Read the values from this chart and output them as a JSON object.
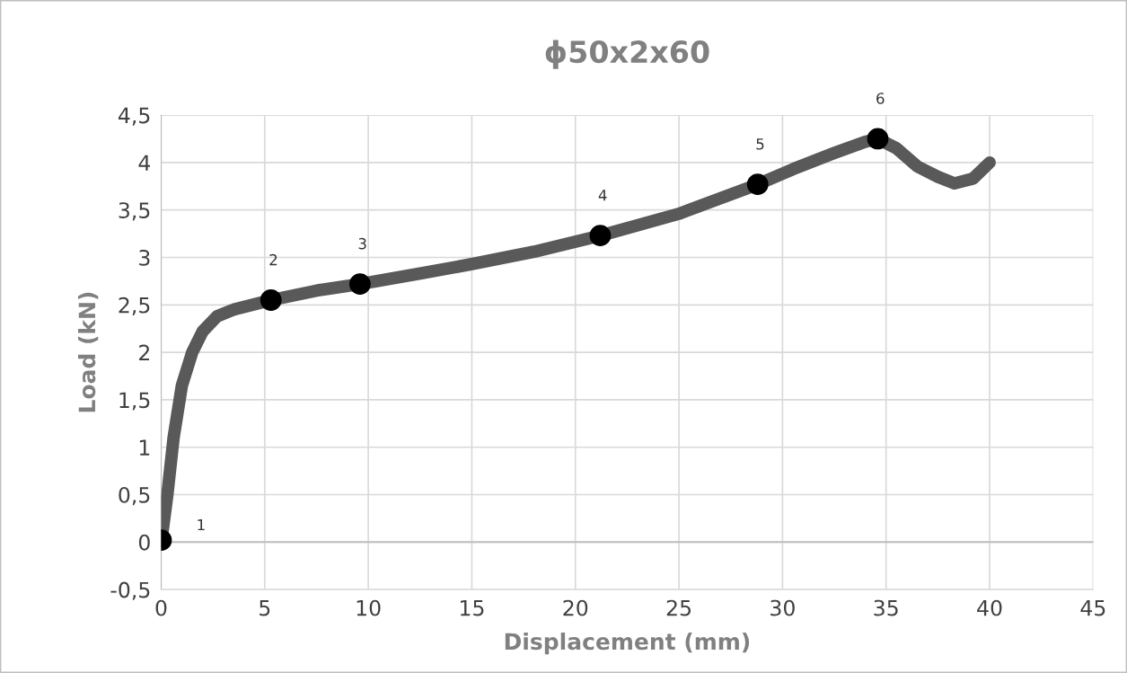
{
  "chart_data": {
    "type": "line",
    "title": "ϕ50x2x60",
    "xlabel": "Displacement (mm)",
    "ylabel": "Load (kN)",
    "xlim": [
      0,
      45
    ],
    "xticks": [
      0,
      5,
      10,
      15,
      20,
      25,
      30,
      35,
      40,
      45
    ],
    "ylim": [
      -0.5,
      4.5
    ],
    "yticks": [
      {
        "value": -0.5,
        "label": "-0,5"
      },
      0,
      {
        "value": 0.5,
        "label": "0,5"
      },
      1,
      {
        "value": 1.5,
        "label": "1,5"
      },
      2,
      {
        "value": 2.5,
        "label": "2,5"
      },
      3,
      {
        "value": 3.5,
        "label": "3,5"
      },
      4,
      {
        "value": 4.5,
        "label": "4,5"
      }
    ],
    "grid": true,
    "line_style": "solid",
    "marker": "none",
    "series": [
      {
        "color": "#595959",
        "x": [
          0,
          0.3,
          0.6,
          1.0,
          1.5,
          2.0,
          2.7,
          3.5,
          5.3,
          7.5,
          9.6,
          12.5,
          15,
          18,
          21.2,
          25,
          28.8,
          30.5,
          32.5,
          34.0,
          34.6,
          35.5,
          36.5,
          37.5,
          38.3,
          39.2,
          40.0
        ],
        "values": [
          0,
          0.5,
          1.1,
          1.65,
          2.0,
          2.22,
          2.38,
          2.45,
          2.55,
          2.65,
          2.72,
          2.83,
          2.93,
          3.06,
          3.23,
          3.46,
          3.77,
          3.93,
          4.1,
          4.22,
          4.25,
          4.15,
          3.96,
          3.85,
          3.78,
          3.83,
          4.0
        ]
      },
      {
        "type": "scatter",
        "color": "#000000",
        "marker": "circle",
        "x": [
          0,
          5.3,
          9.6,
          21.2,
          28.8,
          34.6
        ],
        "values": [
          0.02,
          2.55,
          2.72,
          3.23,
          3.77,
          4.25
        ]
      }
    ],
    "annotations": [
      {
        "text": "1",
        "x": 0,
        "y": 0.02
      },
      {
        "text": "2",
        "x": 5.3,
        "y": 2.55
      },
      {
        "text": "3",
        "x": 9.6,
        "y": 2.72
      },
      {
        "text": "4",
        "x": 21.2,
        "y": 3.23
      },
      {
        "text": "5",
        "x": 28.8,
        "y": 3.77
      },
      {
        "text": "6",
        "x": 34.6,
        "y": 4.25
      }
    ]
  }
}
